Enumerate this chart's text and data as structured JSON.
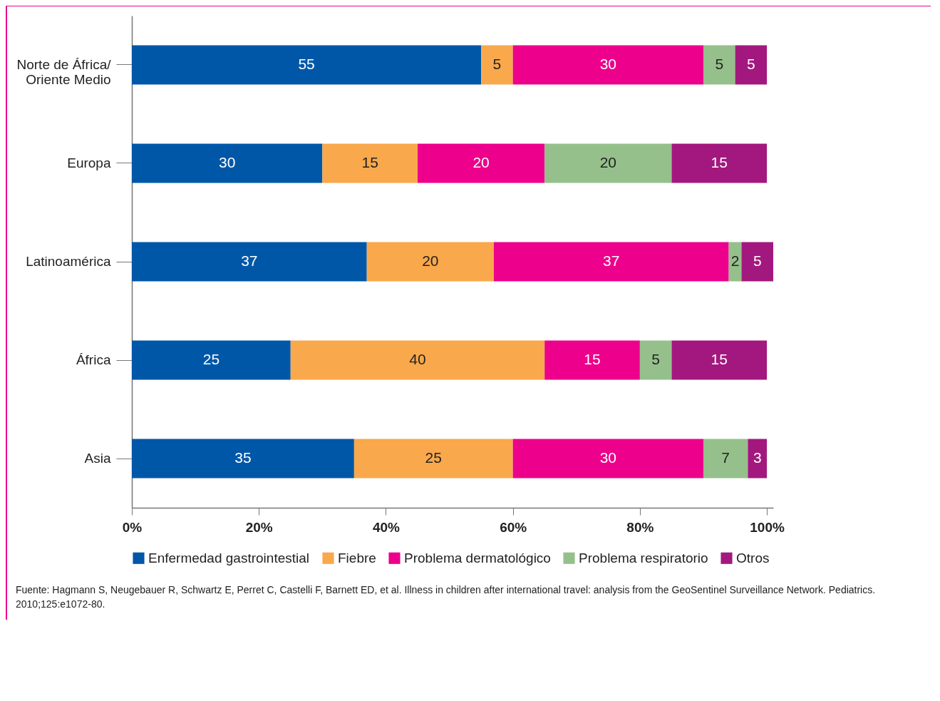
{
  "chart_data": {
    "type": "bar",
    "orientation": "horizontal",
    "stacked": true,
    "data_labels": true,
    "categories": [
      "Norte de África/ Oriente Medio",
      "Europa",
      "Latinoamérica",
      "África",
      "Asia"
    ],
    "series": [
      {
        "name": "Enfermedad gastrointestial",
        "color": "#0057a8",
        "values": [
          55,
          30,
          37,
          25,
          35
        ]
      },
      {
        "name": "Fiebre",
        "color": "#f9a84b",
        "values": [
          5,
          15,
          20,
          40,
          25
        ]
      },
      {
        "name": "Problema dermatológico",
        "color": "#ec008c",
        "values": [
          30,
          20,
          37,
          15,
          30
        ]
      },
      {
        "name": "Problema respiratorio",
        "color": "#95c08b",
        "values": [
          5,
          20,
          2,
          5,
          7
        ]
      },
      {
        "name": "Otros",
        "color": "#a3187e",
        "values": [
          5,
          15,
          5,
          15,
          3
        ]
      }
    ],
    "xlim": [
      0,
      101
    ],
    "xticks": [
      {
        "value": 0,
        "label": "0%"
      },
      {
        "value": 20,
        "label": "20%"
      },
      {
        "value": 40,
        "label": "40%"
      },
      {
        "value": 60,
        "label": "60%"
      },
      {
        "value": 80,
        "label": "80%"
      },
      {
        "value": 100,
        "label": "100%"
      }
    ],
    "grid": false,
    "legend": "bottom",
    "annotations": [
      "Fuente: Hagmann S, Neugebauer R, Schwartz E, Perret C, Castelli F, Barnett ED, et al. Illness in children after international travel: analysis from the GeoSentinel Surveillance Network. Pediatrics. 2010;125:e1072-80."
    ]
  }
}
